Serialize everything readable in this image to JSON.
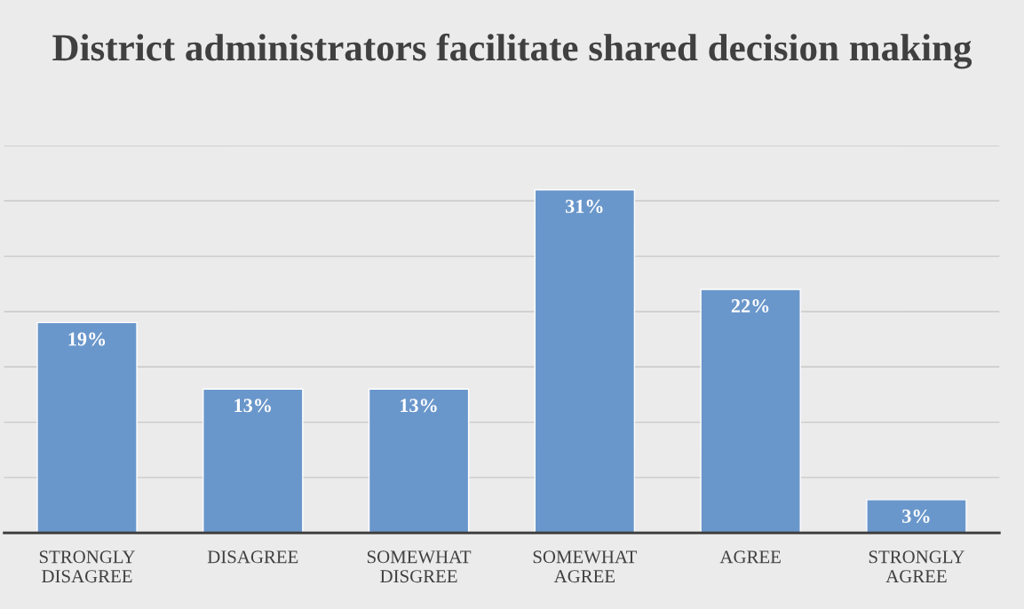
{
  "chart_data": {
    "type": "bar",
    "title": "District administrators facilitate shared decision making",
    "categories": [
      "STRONGLY\nDISAGREE",
      "DISAGREE",
      "SOMEWHAT\nDISGREE",
      "SOMEWHAT\nAGREE",
      "AGREE",
      "STRONGLY\nAGREE"
    ],
    "values": [
      19,
      13,
      13,
      31,
      22,
      3
    ],
    "value_labels": [
      "19%",
      "13%",
      "13%",
      "31%",
      "22%",
      "3%"
    ],
    "color": "#6a97cb",
    "ylim": [
      0,
      35
    ],
    "yticks": [
      {
        "value": 0,
        "label": null
      },
      {
        "value": 5,
        "label": null
      },
      {
        "value": 10,
        "label": null
      },
      {
        "value": 15,
        "label": null
      },
      {
        "value": 20,
        "label": null
      },
      {
        "value": 25,
        "label": null
      },
      {
        "value": 30,
        "label": null
      },
      {
        "value": 35,
        "label": null
      }
    ],
    "grid": "y",
    "legend": false,
    "tick_labels": "x"
  }
}
